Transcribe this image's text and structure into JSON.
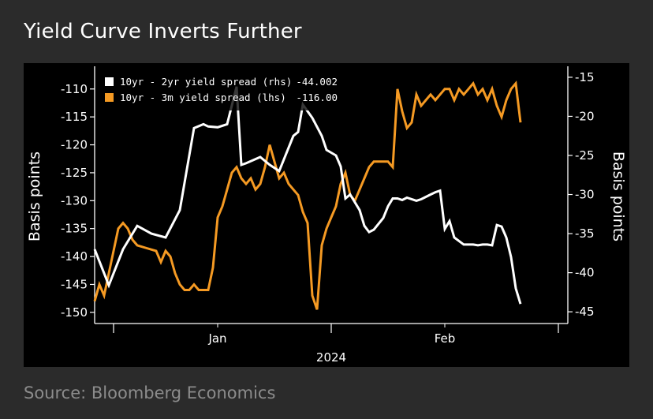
{
  "header": {
    "title": "Yield Curve Inverts Further"
  },
  "footer": {
    "source": "Source: Bloomberg Economics"
  },
  "chart_data": {
    "type": "line",
    "title": "Yield Curve Inverts Further",
    "x_tick_labels": [
      "Jan",
      "Feb"
    ],
    "x_year_label": "2024",
    "y_left_label": "Basis points",
    "y_right_label": "Basis points",
    "y_left_range": [
      -152,
      -106.5
    ],
    "y_right_range": [
      -46.5,
      -14
    ],
    "y_left_ticks": [
      -110,
      -115,
      -120,
      -125,
      -130,
      -135,
      -140,
      -145,
      -150
    ],
    "y_right_ticks": [
      -15,
      -20,
      -25,
      -30,
      -35,
      -40,
      -45
    ],
    "grid": false,
    "legend_position": "top-left",
    "series": [
      {
        "name": "10yr - 2yr yield spread (rhs)",
        "last_value": "-44.002",
        "axis": "right",
        "color": "#ffffff",
        "x": [
          0,
          3,
          6,
          9,
          12,
          15,
          18,
          21,
          23,
          24,
          26,
          28,
          30,
          31,
          32,
          35,
          37,
          39,
          40,
          42,
          43,
          44,
          46,
          48,
          49,
          51,
          52,
          53,
          54,
          56,
          57,
          58,
          59,
          61,
          62,
          63,
          64,
          65,
          66,
          68,
          69,
          70,
          71,
          72,
          73,
          74,
          75,
          76,
          78,
          79,
          80,
          81,
          82,
          83,
          84,
          85,
          86,
          87,
          88,
          89,
          90
        ],
        "y": [
          -37,
          -41.6,
          -37,
          -34,
          -35,
          -35.5,
          -32,
          -21.5,
          -21,
          -21.3,
          -21.4,
          -21,
          -16.2,
          -26.2,
          -26,
          -25.2,
          -26.2,
          -27,
          -25.5,
          -22.5,
          -22,
          -18.5,
          -20.2,
          -22.5,
          -24.3,
          -25,
          -26.4,
          -30.5,
          -30,
          -32,
          -34,
          -34.8,
          -34.5,
          -33,
          -31.5,
          -30.5,
          -30.5,
          -30.7,
          -30.4,
          -30.8,
          -30.6,
          -30.3,
          -30,
          -29.7,
          -29.5,
          -34.4,
          -33.4,
          -35.5,
          -36.4,
          -36.4,
          -36.4,
          -36.5,
          -36.4,
          -36.4,
          -36.5,
          -33.9,
          -34.1,
          -35.5,
          -38,
          -42,
          -44
        ]
      },
      {
        "name": "10yr - 3m yield spread (lhs)",
        "last_value": "-116.00",
        "axis": "left",
        "color": "#f59a23",
        "x": [
          0,
          1,
          2,
          3,
          4,
          5,
          6,
          7,
          8,
          9,
          11,
          13,
          14,
          15,
          16,
          17,
          18,
          19,
          20,
          21,
          22,
          23,
          24,
          25,
          26,
          27,
          28,
          29,
          30,
          31,
          32,
          33,
          34,
          35,
          36,
          37,
          38,
          39,
          40,
          41,
          42,
          43,
          44,
          45,
          46,
          47,
          48,
          49,
          50,
          51,
          52,
          53,
          54,
          55,
          56,
          57,
          58,
          59,
          60,
          61,
          62,
          63,
          64,
          65,
          66,
          67,
          68,
          69,
          70,
          71,
          72,
          73,
          74,
          75,
          76,
          77,
          78,
          79,
          80,
          81,
          82,
          83,
          84,
          85,
          86,
          87,
          88,
          89,
          90
        ],
        "y": [
          -148,
          -145,
          -147,
          -143,
          -139,
          -135,
          -134,
          -135,
          -137,
          -138,
          -138.5,
          -139,
          -141,
          -139,
          -140,
          -143,
          -145,
          -146,
          -146,
          -145,
          -146,
          -146,
          -146,
          -142,
          -133,
          -131,
          -128,
          -125,
          -124,
          -126,
          -127,
          -126,
          -128,
          -127,
          -124,
          -120,
          -123,
          -126,
          -125,
          -127,
          -128,
          -129,
          -132,
          -134,
          -147,
          -149.5,
          -138,
          -135,
          -133,
          -131,
          -127,
          -125,
          -129,
          -130,
          -128,
          -126,
          -124,
          -123,
          -123,
          -123,
          -123,
          -124,
          -110,
          -114,
          -117,
          -116,
          -111,
          -113,
          -112,
          -111,
          -112,
          -111,
          -110,
          -110,
          -112,
          -110,
          -111,
          -110,
          -109,
          -111,
          -110,
          -112,
          -110,
          -113,
          -115,
          -112,
          -110,
          -109,
          -116
        ]
      }
    ]
  }
}
